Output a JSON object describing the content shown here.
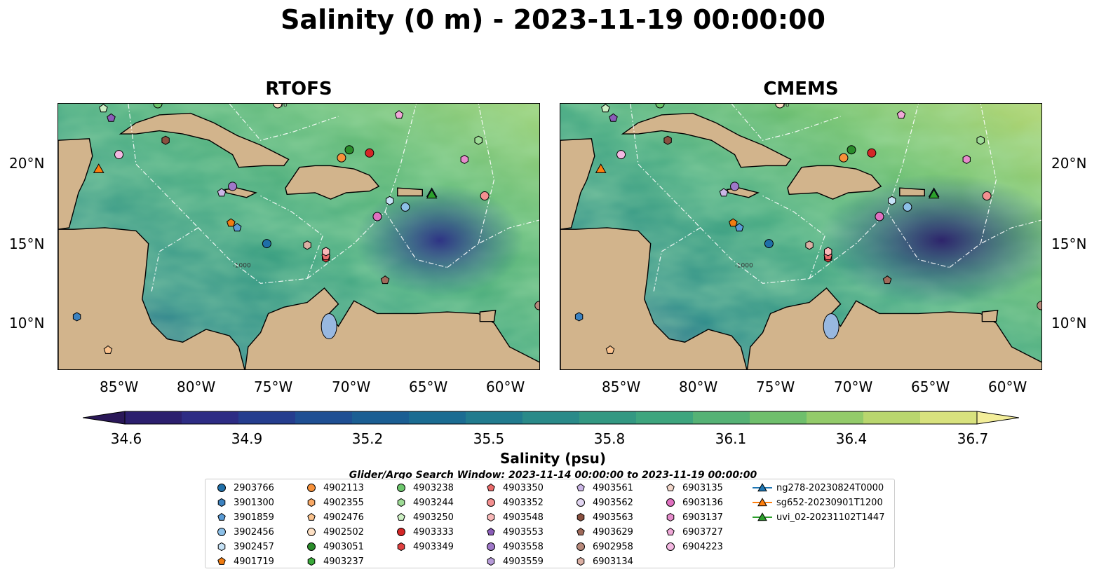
{
  "title": "Salinity (0 m) - 2023-11-19 00:00:00",
  "panels": [
    {
      "title": "RTOFS"
    },
    {
      "title": "CMEMS"
    }
  ],
  "axes": {
    "lon_ticks": [
      "85°W",
      "80°W",
      "75°W",
      "70°W",
      "65°W",
      "60°W"
    ],
    "lat_ticks": [
      "20°N",
      "15°N",
      "10°N"
    ],
    "contour_labels": [
      "-100",
      "-1000",
      "-100",
      "-1000"
    ]
  },
  "colorbar": {
    "label": "Salinity (psu)",
    "ticks": [
      "34.6",
      "34.9",
      "35.2",
      "35.5",
      "35.8",
      "36.1",
      "36.4",
      "36.7"
    ],
    "colors": [
      "#2a1858",
      "#2b2c84",
      "#1f4f93",
      "#1b6c92",
      "#2a8a89",
      "#3ea57e",
      "#6fbf6c",
      "#b9d66e",
      "#f3ee9a"
    ]
  },
  "search_window": "Glider/Argo Search Window: 2023-11-14 00:00:00 to 2023-11-19 00:00:00",
  "legend": [
    {
      "label": "2903766",
      "marker": "circle",
      "color": "#1f6fa8"
    },
    {
      "label": "3901300",
      "marker": "hexagon",
      "color": "#3c82c0"
    },
    {
      "label": "3901859",
      "marker": "pentagon",
      "color": "#5a9bd5"
    },
    {
      "label": "3902456",
      "marker": "circle",
      "color": "#8cc0e8"
    },
    {
      "label": "3902457",
      "marker": "hexagon",
      "color": "#c6e2f6"
    },
    {
      "label": "4901719",
      "marker": "pentagon",
      "color": "#f07c12"
    },
    {
      "label": "4902113",
      "marker": "circle",
      "color": "#f7913a"
    },
    {
      "label": "4902355",
      "marker": "hexagon",
      "color": "#f9a966"
    },
    {
      "label": "4902476",
      "marker": "pentagon",
      "color": "#fbc38e"
    },
    {
      "label": "4902502",
      "marker": "circle",
      "color": "#fde0c4"
    },
    {
      "label": "4903051",
      "marker": "circle",
      "color": "#2a8c2a"
    },
    {
      "label": "4903237",
      "marker": "hexagon",
      "color": "#3aaa3a"
    },
    {
      "label": "4903238",
      "marker": "circle",
      "color": "#6cc66c"
    },
    {
      "label": "4903244",
      "marker": "hexagon",
      "color": "#9edc96"
    },
    {
      "label": "4903250",
      "marker": "pentagon",
      "color": "#cdf0c4"
    },
    {
      "label": "4903333",
      "marker": "circle",
      "color": "#d42626"
    },
    {
      "label": "4903349",
      "marker": "hexagon",
      "color": "#e04040"
    },
    {
      "label": "4903350",
      "marker": "pentagon",
      "color": "#ea6a6a"
    },
    {
      "label": "4903352",
      "marker": "circle",
      "color": "#f49090"
    },
    {
      "label": "4903548",
      "marker": "hexagon",
      "color": "#f9b8b8"
    },
    {
      "label": "4903553",
      "marker": "pentagon",
      "color": "#8a5cb8"
    },
    {
      "label": "4903558",
      "marker": "circle",
      "color": "#9f78c8"
    },
    {
      "label": "4903559",
      "marker": "hexagon",
      "color": "#b69ad8"
    },
    {
      "label": "4903561",
      "marker": "pentagon",
      "color": "#cbb6e6"
    },
    {
      "label": "4903562",
      "marker": "circle",
      "color": "#e2d6f2"
    },
    {
      "label": "4903563",
      "marker": "hexagon",
      "color": "#8a5040"
    },
    {
      "label": "4903629",
      "marker": "pentagon",
      "color": "#a06a5a"
    },
    {
      "label": "6902958",
      "marker": "circle",
      "color": "#b88a7c"
    },
    {
      "label": "6903134",
      "marker": "hexagon",
      "color": "#dcb0a4"
    },
    {
      "label": "6903135",
      "marker": "pentagon",
      "color": "#f4d8cc"
    },
    {
      "label": "6903136",
      "marker": "circle",
      "color": "#e070c0"
    },
    {
      "label": "6903137",
      "marker": "hexagon",
      "color": "#e68ccc"
    },
    {
      "label": "6903727",
      "marker": "pentagon",
      "color": "#f0a8d8"
    },
    {
      "label": "6904223",
      "marker": "circle",
      "color": "#f4b8e2"
    },
    {
      "label": "ng278-20230824T0000",
      "marker": "triangle-line",
      "color": "#1f77b4"
    },
    {
      "label": "sg652-20230901T1200",
      "marker": "triangle-line",
      "color": "#ff7f0e"
    },
    {
      "label": "uvi_02-20231102T1447",
      "marker": "triangle-line",
      "color": "#2ca02c"
    }
  ],
  "floats": [
    {
      "id": "2903766",
      "lon": -75.6,
      "lat": 15.0
    },
    {
      "id": "3901300",
      "lon": -87.8,
      "lat": 10.4
    },
    {
      "id": "3901859",
      "lon": -77.5,
      "lat": 16.0
    },
    {
      "id": "3902456",
      "lon": -66.7,
      "lat": 17.3
    },
    {
      "id": "3902457",
      "lon": -67.7,
      "lat": 17.7
    },
    {
      "id": "4901719",
      "lon": -77.9,
      "lat": 16.3
    },
    {
      "id": "4902113",
      "lon": -70.8,
      "lat": 20.4
    },
    {
      "id": "4902476",
      "lon": -85.8,
      "lat": 8.3
    },
    {
      "id": "4902502",
      "lon": -74.9,
      "lat": 23.8
    },
    {
      "id": "4903051",
      "lon": -70.3,
      "lat": 20.9
    },
    {
      "id": "4903238",
      "lon": -82.6,
      "lat": 23.8
    },
    {
      "id": "4903244",
      "lon": -62.0,
      "lat": 21.5
    },
    {
      "id": "4903250",
      "lon": -86.1,
      "lat": 23.5
    },
    {
      "id": "4903333",
      "lon": -69.0,
      "lat": 20.7
    },
    {
      "id": "4903349",
      "lon": -71.8,
      "lat": 14.1
    },
    {
      "id": "4903350",
      "lon": -71.8,
      "lat": 14.2
    },
    {
      "id": "4903352",
      "lon": -61.6,
      "lat": 18.0
    },
    {
      "id": "4903548",
      "lon": -71.8,
      "lat": 14.5
    },
    {
      "id": "4903553",
      "lon": -85.6,
      "lat": 22.9
    },
    {
      "id": "4903558",
      "lon": -77.8,
      "lat": 18.6
    },
    {
      "id": "4903561",
      "lon": -78.5,
      "lat": 18.2
    },
    {
      "id": "4903563",
      "lon": -82.1,
      "lat": 21.5
    },
    {
      "id": "4903629",
      "lon": -68.0,
      "lat": 12.7
    },
    {
      "id": "6902958",
      "lon": -58.1,
      "lat": 11.1
    },
    {
      "id": "6903134",
      "lon": -73.0,
      "lat": 14.9
    },
    {
      "id": "6903136",
      "lon": -68.5,
      "lat": 16.7
    },
    {
      "id": "6903137",
      "lon": -62.9,
      "lat": 20.3
    },
    {
      "id": "6903727",
      "lon": -67.1,
      "lat": 23.1
    },
    {
      "id": "6904223",
      "lon": -85.1,
      "lat": 20.6
    }
  ],
  "gliders": [
    {
      "id": "ng278-20230824T0000",
      "lon": -65.0,
      "lat": 18.2
    },
    {
      "id": "sg652-20230901T1200",
      "lon": -86.4,
      "lat": 19.7
    },
    {
      "id": "uvi_02-20231102T1447",
      "lon": -65.0,
      "lat": 18.1
    }
  ]
}
